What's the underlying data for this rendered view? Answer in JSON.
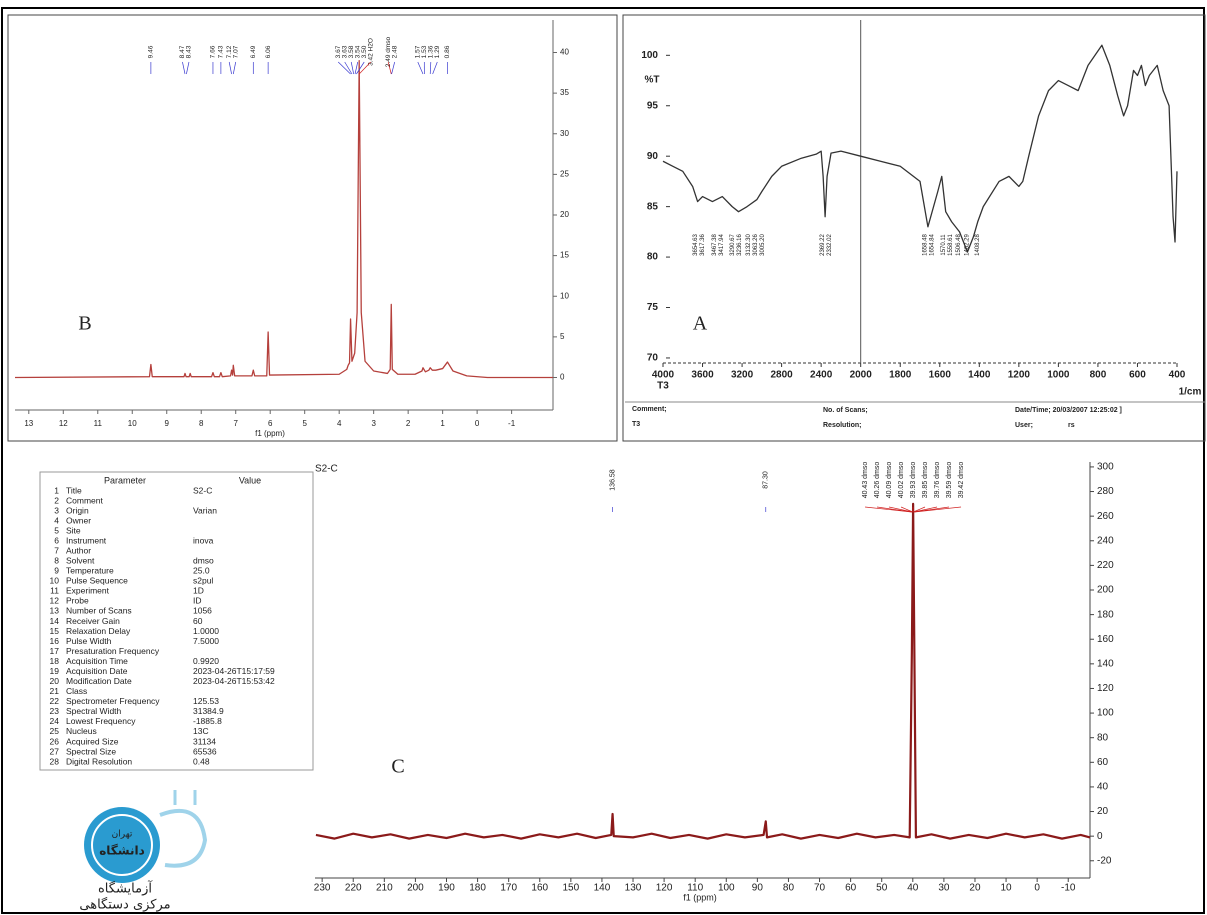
{
  "chart_data": [
    {
      "type": "line",
      "panel_label": "B",
      "x_label": "f1 (ppm)",
      "color": "#b5403c",
      "annotation_color": "#3a3ad0",
      "xlim": [
        13.4,
        -2.2
      ],
      "ylim": [
        -4,
        44
      ],
      "xticks": [
        13,
        12,
        11,
        10,
        9,
        8,
        7,
        6,
        5,
        4,
        3,
        2,
        1,
        0,
        -1
      ],
      "yticks": [
        0,
        5,
        10,
        15,
        20,
        25,
        30,
        35,
        40
      ],
      "x": [
        13.4,
        9.5,
        9.46,
        9.42,
        8.5,
        8.47,
        8.44,
        8.35,
        8.32,
        8.29,
        7.7,
        7.66,
        7.62,
        7.47,
        7.43,
        7.39,
        7.15,
        7.12,
        7.09,
        7.07,
        7.03,
        6.53,
        6.49,
        6.45,
        6.1,
        6.06,
        6.02,
        4.0,
        3.78,
        3.74,
        3.7,
        3.67,
        3.63,
        3.55,
        3.48,
        3.42,
        3.36,
        3.25,
        3.0,
        2.6,
        2.52,
        2.49,
        2.46,
        2.3,
        1.8,
        1.6,
        1.57,
        1.5,
        1.4,
        1.36,
        1.3,
        1.2,
        1.0,
        0.86,
        0.7,
        0.3,
        -0.3,
        -2.2
      ],
      "values": [
        0,
        0.1,
        1.6,
        0.1,
        0.1,
        0.5,
        0.1,
        0.1,
        0.5,
        0.1,
        0.1,
        0.6,
        0.1,
        0.1,
        0.6,
        0.1,
        0.2,
        0.9,
        0.3,
        1.5,
        0.2,
        0.2,
        0.9,
        0.2,
        0.2,
        5.6,
        0.3,
        0.4,
        1.0,
        1.5,
        1.8,
        7.2,
        2.0,
        3.0,
        8.0,
        39,
        8.0,
        2.0,
        0.8,
        0.5,
        1.0,
        9.0,
        1.0,
        0.4,
        0.4,
        0.8,
        1.2,
        0.7,
        0.9,
        1.2,
        0.9,
        0.9,
        1.1,
        1.9,
        0.8,
        0.2,
        0,
        0
      ],
      "annotations": [
        {
          "x": 9.46,
          "text": "9.46"
        },
        {
          "x": 8.47,
          "text": "8.47"
        },
        {
          "x": 8.43,
          "text": "8.43"
        },
        {
          "x": 7.66,
          "text": "7.66"
        },
        {
          "x": 7.43,
          "text": "7.43"
        },
        {
          "x": 7.12,
          "text": "7.12"
        },
        {
          "x": 7.07,
          "text": "7.07"
        },
        {
          "x": 6.49,
          "text": "6.49"
        },
        {
          "x": 6.06,
          "text": "6.06"
        },
        {
          "x": 3.67,
          "text": "3.67"
        },
        {
          "x": 3.63,
          "text": "3.63"
        },
        {
          "x": 3.58,
          "text": "3.58"
        },
        {
          "x": 3.54,
          "text": "3.54"
        },
        {
          "x": 3.5,
          "text": "3.50"
        },
        {
          "x": 3.42,
          "text": "3.42 H2O",
          "color": "#d02020"
        },
        {
          "x": 2.49,
          "text": "2.49 dmso",
          "color": "#d02020"
        },
        {
          "x": 2.48,
          "text": "2.48"
        },
        {
          "x": 1.57,
          "text": "1.57"
        },
        {
          "x": 1.53,
          "text": "1.53"
        },
        {
          "x": 1.36,
          "text": "1.36"
        },
        {
          "x": 1.29,
          "text": "1.29"
        },
        {
          "x": 0.86,
          "text": "0.86"
        }
      ]
    },
    {
      "type": "line",
      "panel_label": "A",
      "y_label": "%T",
      "x_unit": "1/cm",
      "x_sublabel": "T3",
      "color": "#333333",
      "annotation_color": "#222222",
      "xlim": [
        4000,
        400
      ],
      "xbreak": 2000,
      "ylim": [
        69.5,
        103.5
      ],
      "xticks": [
        4000,
        3600,
        3200,
        2800,
        2400,
        2000,
        1800,
        1600,
        1400,
        1200,
        1000,
        800,
        600,
        400
      ],
      "yticks": [
        70,
        75,
        80,
        85,
        90,
        95,
        100
      ],
      "x": [
        4000,
        3900,
        3800,
        3700,
        3650,
        3600,
        3500,
        3400,
        3300,
        3236,
        3150,
        3050,
        3000,
        2900,
        2800,
        2600,
        2450,
        2400,
        2380,
        2360,
        2340,
        2300,
        2200,
        2000,
        1900,
        1800,
        1700,
        1660,
        1610,
        1590,
        1570,
        1540,
        1500,
        1460,
        1430,
        1408,
        1380,
        1300,
        1250,
        1200,
        1180,
        1150,
        1100,
        1050,
        1000,
        950,
        900,
        850,
        780,
        740,
        700,
        670,
        650,
        620,
        600,
        580,
        560,
        540,
        500,
        470,
        440,
        420,
        410,
        405,
        400
      ],
      "values": [
        89.5,
        89,
        88.5,
        87,
        85.5,
        86,
        85.5,
        86,
        85,
        84.5,
        85,
        85.7,
        86.5,
        88,
        89,
        89.8,
        90.2,
        90.5,
        88,
        84,
        88,
        90.3,
        90.5,
        90,
        89.5,
        89,
        87.5,
        83,
        86.5,
        88,
        84.5,
        83.5,
        82.5,
        80.5,
        82,
        83.5,
        85,
        87.5,
        88,
        87,
        87.5,
        90,
        94,
        96.5,
        97.5,
        97,
        96.5,
        99,
        101,
        99,
        96,
        94,
        95,
        98.5,
        98,
        99,
        97,
        98,
        99,
        96.5,
        95,
        84,
        81.5,
        85,
        88.5
      ],
      "annotations": [
        {
          "x": 3654.63,
          "text": "3654.63"
        },
        {
          "x": 3617.36,
          "text": "3617.36"
        },
        {
          "x": 3467.38,
          "text": "3467.38"
        },
        {
          "x": 3417.94,
          "text": "3417.94"
        },
        {
          "x": 3290.67,
          "text": "3290.67"
        },
        {
          "x": 3236.16,
          "text": "3236.16"
        },
        {
          "x": 3132.3,
          "text": "3132.30"
        },
        {
          "x": 3063.26,
          "text": "3063.26"
        },
        {
          "x": 3005.2,
          "text": "3005.20"
        },
        {
          "x": 2369.22,
          "text": "2369.22"
        },
        {
          "x": 2332.02,
          "text": "2332.02"
        },
        {
          "x": 1658.48,
          "text": "1658.48"
        },
        {
          "x": 1654.84,
          "text": "1654.84"
        },
        {
          "x": 1570.11,
          "text": "1570.11"
        },
        {
          "x": 1558.61,
          "text": "1558.61"
        },
        {
          "x": 1506.48,
          "text": "1506.48"
        },
        {
          "x": 1462.29,
          "text": "1462.29"
        },
        {
          "x": 1408.28,
          "text": "1408.28"
        }
      ],
      "footer": {
        "comment": "Comment;",
        "sample": "T3",
        "scans": "No. of Scans;",
        "resolution": "Resolution;",
        "datetime": "Date/Time; 20/03/2007 12:25:02 ]",
        "user": "User;",
        "user_value": "rs"
      }
    },
    {
      "type": "line",
      "title": "S2-C",
      "panel_label": "C",
      "x_label": "f1 (ppm)",
      "color": "#8b1a1a",
      "annotation_color": "#3a3ad0",
      "xlim": [
        232.3,
        -17
      ],
      "ylim": [
        -34,
        304
      ],
      "xticks": [
        230,
        220,
        210,
        200,
        190,
        180,
        170,
        160,
        150,
        140,
        130,
        120,
        110,
        100,
        90,
        80,
        70,
        60,
        50,
        40,
        30,
        20,
        10,
        0,
        -10
      ],
      "yticks": [
        -20,
        0,
        20,
        40,
        60,
        80,
        100,
        120,
        140,
        160,
        180,
        200,
        220,
        240,
        260,
        280,
        300
      ],
      "x": [
        232,
        226,
        220,
        214,
        208,
        202,
        196,
        190,
        184,
        178,
        172,
        166,
        160,
        154,
        148,
        142,
        137,
        136.58,
        136.2,
        130,
        124,
        118,
        112,
        106,
        100,
        94,
        88,
        87.3,
        86.9,
        82,
        76,
        70,
        64,
        58,
        52,
        46,
        41,
        40.3,
        39.9,
        39.5,
        39,
        34,
        28,
        22,
        16,
        10,
        4,
        -2,
        -8,
        -14,
        -17
      ],
      "values": [
        1,
        -2,
        2,
        -1,
        1.5,
        -2,
        1,
        -1.5,
        2,
        -1,
        1,
        -2,
        1.5,
        -1,
        2,
        -1.5,
        1,
        18,
        0,
        -1,
        2,
        -1.5,
        1,
        -2,
        1.5,
        -1,
        1,
        12,
        -1,
        1.5,
        -2,
        1,
        -1.5,
        2,
        -1,
        1,
        -1,
        150,
        270,
        150,
        -1,
        1.5,
        -2,
        1,
        -1.5,
        2,
        -1,
        1.5,
        -2,
        1,
        -1
      ],
      "annotations": [
        {
          "x": 136.58,
          "text": "136.58"
        },
        {
          "x": 87.3,
          "text": "87.30"
        },
        {
          "x": 40.43,
          "text": "40.43 dmso",
          "color": "#d02020"
        },
        {
          "x": 40.26,
          "text": "40.26 dmso",
          "color": "#d02020"
        },
        {
          "x": 40.09,
          "text": "40.09 dmso",
          "color": "#d02020"
        },
        {
          "x": 40.02,
          "text": "40.02 dmso",
          "color": "#d02020"
        },
        {
          "x": 39.93,
          "text": "39.93 dmso",
          "color": "#d02020"
        },
        {
          "x": 39.85,
          "text": "39.85 dmso",
          "color": "#d02020"
        },
        {
          "x": 39.76,
          "text": "39.76 dmso",
          "color": "#d02020"
        },
        {
          "x": 39.59,
          "text": "39.59 dmso",
          "color": "#d02020"
        },
        {
          "x": 39.42,
          "text": "39.42 dmso",
          "color": "#d02020"
        }
      ]
    }
  ],
  "parameters": {
    "header": [
      "Parameter",
      "Value"
    ],
    "rows": [
      [
        1,
        "Title",
        "S2-C"
      ],
      [
        2,
        "Comment"
      ],
      [
        3,
        "Origin",
        "Varian"
      ],
      [
        4,
        "Owner"
      ],
      [
        5,
        "Site"
      ],
      [
        6,
        "Instrument",
        "inova"
      ],
      [
        7,
        "Author"
      ],
      [
        8,
        "Solvent",
        "dmso"
      ],
      [
        9,
        "Temperature",
        "25.0"
      ],
      [
        10,
        "Pulse Sequence",
        "s2pul"
      ],
      [
        11,
        "Experiment",
        "1D"
      ],
      [
        12,
        "Probe",
        "ID"
      ],
      [
        13,
        "Number of Scans",
        "1056"
      ],
      [
        14,
        "Receiver Gain",
        "60"
      ],
      [
        15,
        "Relaxation Delay",
        "1.0000"
      ],
      [
        16,
        "Pulse Width",
        "7.5000"
      ],
      [
        17,
        "Presaturation Frequency"
      ],
      [
        18,
        "Acquisition Time",
        "0.9920"
      ],
      [
        19,
        "Acquisition Date",
        "2023-04-26T15:17:59"
      ],
      [
        20,
        "Modification Date",
        "2023-04-26T15:53:42"
      ],
      [
        21,
        "Class"
      ],
      [
        22,
        "Spectrometer Frequency",
        "125.53"
      ],
      [
        23,
        "Spectral Width",
        "31384.9"
      ],
      [
        24,
        "Lowest Frequency",
        "-1885.8"
      ],
      [
        25,
        "Nucleus",
        "13C"
      ],
      [
        26,
        "Acquired Size",
        "31134"
      ],
      [
        27,
        "Spectral Size",
        "65536"
      ],
      [
        28,
        "Digital Resolution",
        "0.48"
      ]
    ]
  },
  "logo": {
    "inner": [
      "تهران",
      "دانشگاه"
    ],
    "lines": [
      "آزمایشگاه",
      "مرکزی دستگاهی"
    ]
  }
}
